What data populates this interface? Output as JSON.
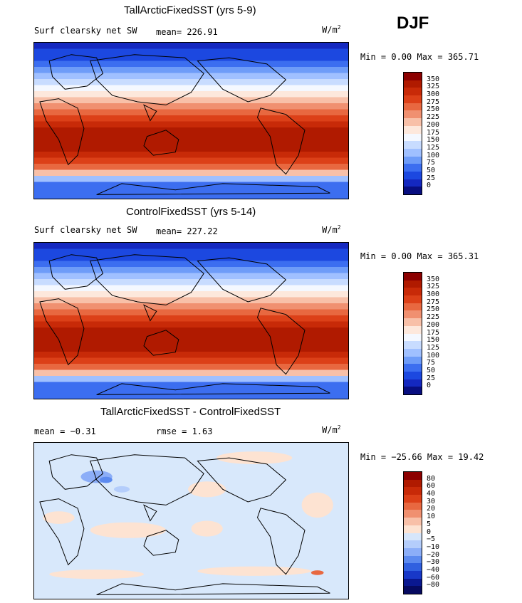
{
  "season": "DJF",
  "units_text": "W/m",
  "units_exp": "2",
  "panels": [
    {
      "title": "TallArcticFixedSST (yrs 5-9)",
      "variable": "Surf clearsky net SW",
      "mean_text": "mean= 226.91",
      "minmax_text": "Min =   0.00 Max = 365.71",
      "colorbar_labels": [
        "350",
        "325",
        "300",
        "275",
        "250",
        "225",
        "200",
        "175",
        "150",
        "125",
        "100",
        "75",
        "50",
        "25",
        "0"
      ]
    },
    {
      "title": "ControlFixedSST (yrs 5-14)",
      "variable": "Surf clearsky net SW",
      "mean_text": "mean= 227.22",
      "minmax_text": "Min =   0.00 Max = 365.31",
      "colorbar_labels": [
        "350",
        "325",
        "300",
        "275",
        "250",
        "225",
        "200",
        "175",
        "150",
        "125",
        "100",
        "75",
        "50",
        "25",
        "0"
      ]
    },
    {
      "title": "TallArcticFixedSST - ControlFixedSST",
      "mean_text": "mean =  −0.31",
      "rmse_text": "rmse =   1.63",
      "minmax_text": "Min = −25.66 Max =  19.42",
      "colorbar_labels": [
        "80",
        "60",
        "40",
        "30",
        "20",
        "10",
        "5",
        "0",
        "−5",
        "−10",
        "−20",
        "−30",
        "−40",
        "−60",
        "−80"
      ]
    }
  ],
  "colors": {
    "field_scale": [
      "#8c0000",
      "#b01a00",
      "#c82a08",
      "#dc4018",
      "#e86840",
      "#f09070",
      "#f8c0a8",
      "#fde8dc",
      "#f4f8ff",
      "#c8dcff",
      "#a0c0ff",
      "#6e9cf8",
      "#3c6ef0",
      "#1c48e0",
      "#1428c0",
      "#080e80"
    ],
    "diff_scale": [
      "#8c0000",
      "#b01a00",
      "#c82a08",
      "#dc4018",
      "#e86840",
      "#f09070",
      "#f8c0a8",
      "#fde3d2",
      "#d6e6fb",
      "#b4cdfb",
      "#8caef8",
      "#5c8aef",
      "#3060e0",
      "#1838c8",
      "#0a1890",
      "#060a60"
    ],
    "coast": "#000000"
  }
}
